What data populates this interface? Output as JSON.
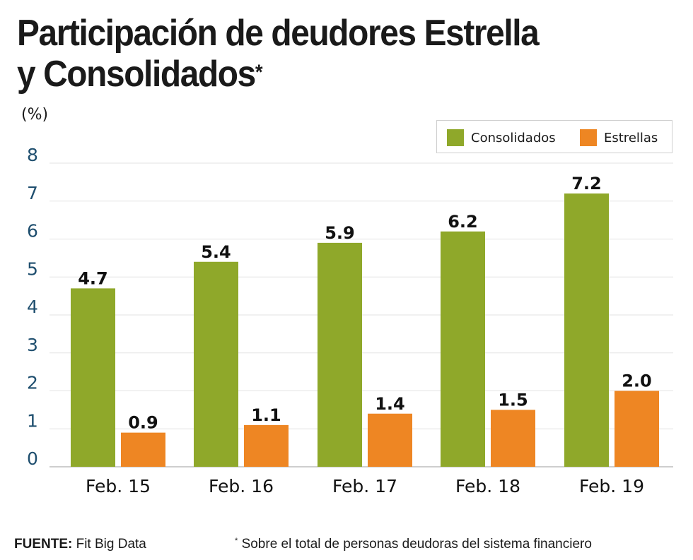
{
  "title_line1": "Participación de deudores Estrella",
  "title_line2": "y Consolidados",
  "title_mark": "*",
  "unit_label": "(%)",
  "footer": {
    "source_label": "FUENTE:",
    "source_value": "Fit Big Data",
    "note_mark": "*",
    "note_text": "Sobre el total de personas deudoras del sistema financiero"
  },
  "colors": {
    "consolidados": "#8fa82a",
    "estrellas": "#ee8623",
    "axis_text": "#1e4e6e",
    "grid": "#e3e3e3"
  },
  "chart_data": {
    "type": "bar",
    "title": "Participación de deudores Estrella y Consolidados*",
    "xlabel": "",
    "ylabel": "(%)",
    "ylim": [
      0,
      8
    ],
    "yticks": [
      0,
      1,
      2,
      3,
      4,
      5,
      6,
      7,
      8
    ],
    "grid": true,
    "legend_position": "top-right",
    "categories": [
      "Feb. 15",
      "Feb. 16",
      "Feb. 17",
      "Feb. 18",
      "Feb. 19"
    ],
    "series": [
      {
        "name": "Consolidados",
        "values": [
          4.7,
          5.4,
          5.9,
          6.2,
          7.2
        ],
        "labels": [
          "4.7",
          "5.4",
          "5.9",
          "6.2",
          "7.2"
        ]
      },
      {
        "name": "Estrellas",
        "values": [
          0.9,
          1.1,
          1.4,
          1.5,
          2.0
        ],
        "labels": [
          "0.9",
          "1.1",
          "1.4",
          "1.5",
          "2.0"
        ]
      }
    ]
  }
}
